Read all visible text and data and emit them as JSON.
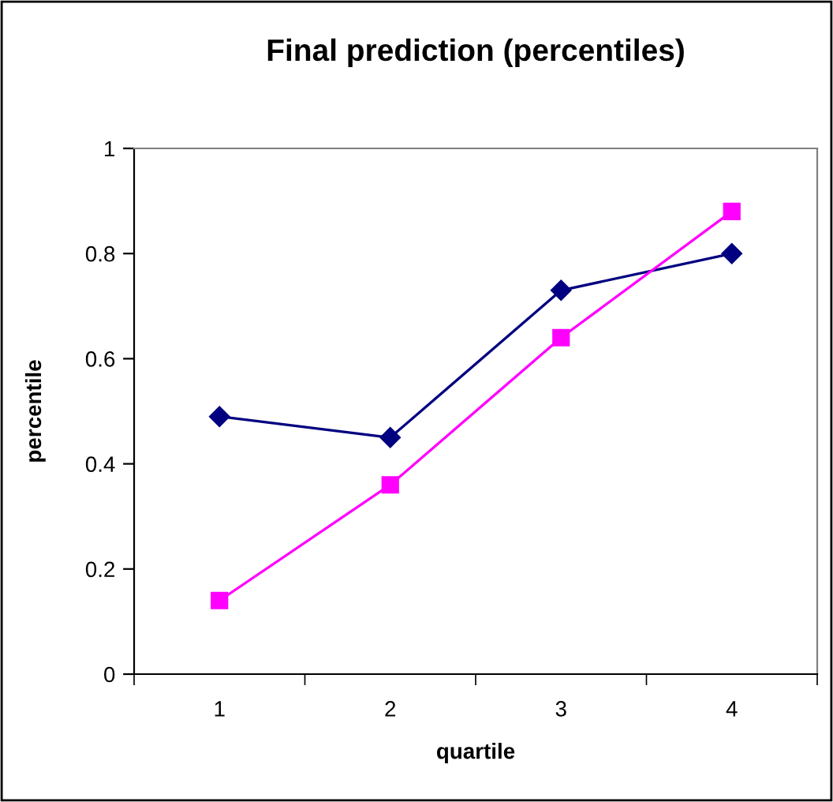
{
  "chart_data": {
    "type": "line",
    "title": "Final prediction (percentiles)",
    "xlabel": "quartile",
    "ylabel": "percentile",
    "categories": [
      "1",
      "2",
      "3",
      "4"
    ],
    "series": [
      {
        "color": "#000080",
        "marker": "diamond",
        "values": [
          0.49,
          0.45,
          0.73,
          0.8
        ]
      },
      {
        "color": "#ff00ff",
        "marker": "square",
        "values": [
          0.14,
          0.36,
          0.64,
          0.88
        ]
      }
    ],
    "ylim": [
      0,
      1
    ],
    "yticks": [
      0,
      0.2,
      0.4,
      0.6,
      0.8,
      1
    ],
    "grid": false,
    "legend": false
  }
}
